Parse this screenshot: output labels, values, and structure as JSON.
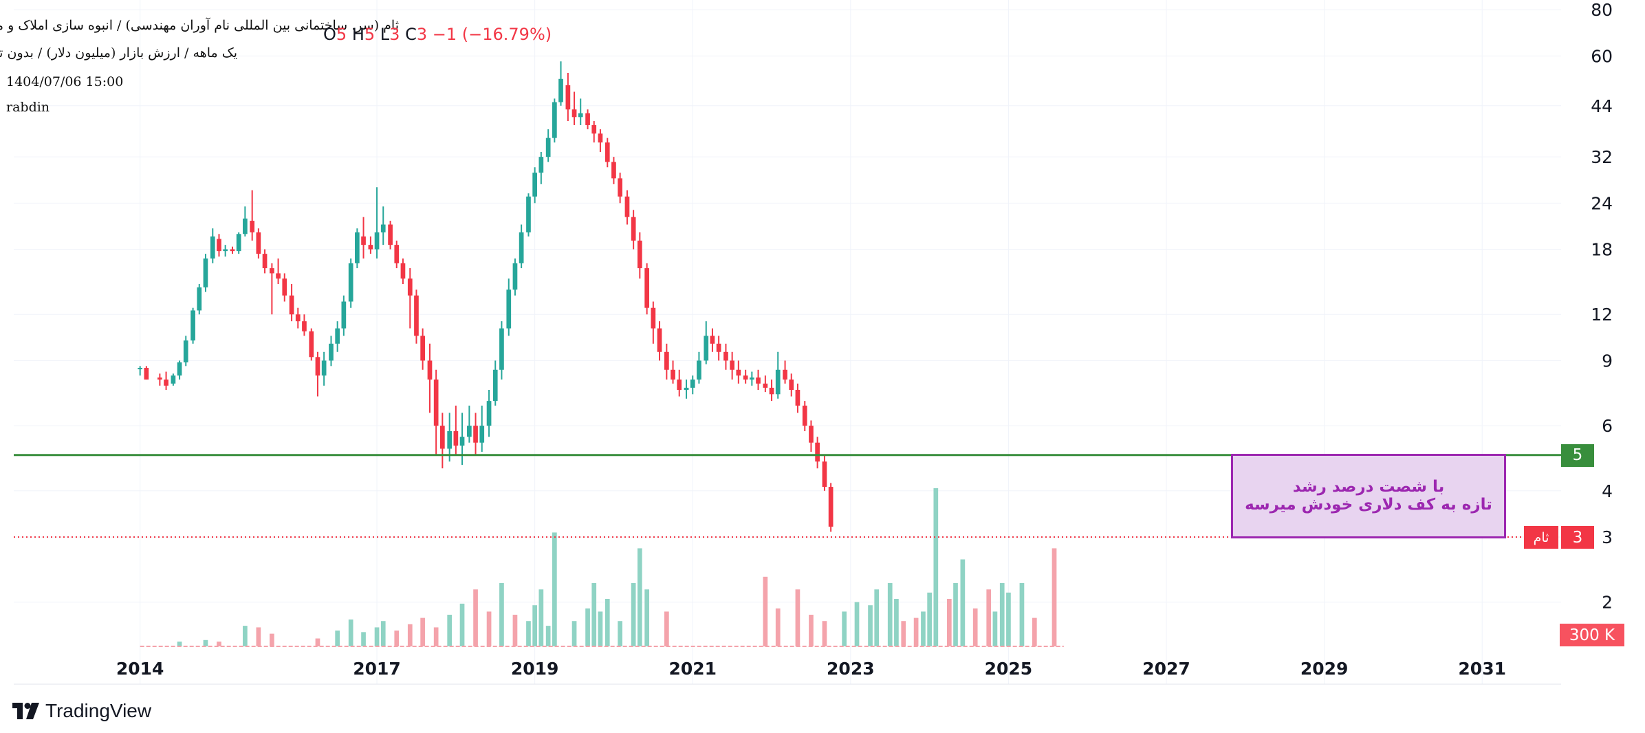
{
  "header": {
    "title_line1": "ثام (سر. ساختمانی بین المللی نام آوران مهندسی) / انبوه سازی املاک و مستغلات",
    "title_line2": "یک ماهه / ارزش بازار (میلیون دلار) / بدون تعدیل",
    "datetime": "1404/07/06 15:00",
    "user": "rabdin"
  },
  "legend": {
    "series_faded": "ثام (سر. ساختمانی بین المللی نام آوران مهندسی), 1M, Heikin Ashi",
    "o_label": "O",
    "o_value": "5",
    "h_label": "H",
    "h_value": "5",
    "l_label": "L",
    "l_value": "3",
    "c_label": "C",
    "c_value": "3",
    "change": "−1 (−16.79%)"
  },
  "annotation": {
    "line1": "با شصت درصد رشد",
    "line2": "تازه به کف دلاری خودش میرسه"
  },
  "price_tags": {
    "level": "5",
    "last": "3",
    "symbol": "ثام",
    "volume": "300 K"
  },
  "branding": {
    "name": "TradingView"
  },
  "colors": {
    "up": "#26a69a",
    "down": "#f23645",
    "vol_up": "#8fd3c4",
    "vol_down": "#f4a3ab",
    "level_line": "#388e3c",
    "last_line": "#f23645",
    "annotation": "#9c27b0"
  },
  "chart_data": {
    "type": "candlestick",
    "chart_style": "Heikin Ashi",
    "interval": "1M",
    "y_scale": "log",
    "ylim": [
      1.2,
      85
    ],
    "y_ticks": [
      2,
      3,
      4,
      6,
      9,
      12,
      18,
      24,
      32,
      44,
      60,
      80
    ],
    "x_ticks": [
      2014,
      2017,
      2019,
      2021,
      2023,
      2025,
      2027,
      2029,
      2031
    ],
    "x_range": [
      2012.4,
      2032.0
    ],
    "horizontal_lines": [
      {
        "value": 5,
        "style": "solid"
      },
      {
        "value": 3,
        "style": "dotted"
      }
    ],
    "last_price": 3,
    "candles": [
      {
        "t": 2014.0,
        "o": 8.6,
        "h": 8.7,
        "l": 8.2,
        "c": 8.6
      },
      {
        "t": 2014.08,
        "o": 8.6,
        "h": 8.7,
        "l": 8.0,
        "c": 8.0
      },
      {
        "t": 2014.25,
        "o": 8.1,
        "h": 8.3,
        "l": 7.7,
        "c": 8.0
      },
      {
        "t": 2014.33,
        "o": 8.0,
        "h": 8.4,
        "l": 7.5,
        "c": 7.7
      },
      {
        "t": 2014.42,
        "o": 7.8,
        "h": 8.3,
        "l": 7.7,
        "c": 8.2
      },
      {
        "t": 2014.5,
        "o": 8.2,
        "h": 9.0,
        "l": 8.0,
        "c": 8.9
      },
      {
        "t": 2014.58,
        "o": 8.9,
        "h": 10.5,
        "l": 8.7,
        "c": 10.2
      },
      {
        "t": 2014.67,
        "o": 10.2,
        "h": 12.5,
        "l": 10.0,
        "c": 12.3
      },
      {
        "t": 2014.75,
        "o": 12.3,
        "h": 14.5,
        "l": 12.0,
        "c": 14.2
      },
      {
        "t": 2014.83,
        "o": 14.2,
        "h": 17.5,
        "l": 13.8,
        "c": 17.0
      },
      {
        "t": 2014.92,
        "o": 17.0,
        "h": 20.5,
        "l": 16.5,
        "c": 19.5
      },
      {
        "t": 2015.0,
        "o": 19.2,
        "h": 19.8,
        "l": 17.2,
        "c": 17.8
      },
      {
        "t": 2015.08,
        "o": 17.8,
        "h": 18.5,
        "l": 17.2,
        "c": 18.0
      },
      {
        "t": 2015.17,
        "o": 18.0,
        "h": 18.3,
        "l": 17.5,
        "c": 17.8
      },
      {
        "t": 2015.25,
        "o": 17.8,
        "h": 20.0,
        "l": 17.5,
        "c": 19.8
      },
      {
        "t": 2015.33,
        "o": 19.8,
        "h": 23.5,
        "l": 19.5,
        "c": 21.8
      },
      {
        "t": 2015.42,
        "o": 21.5,
        "h": 26.0,
        "l": 19.0,
        "c": 20.0
      },
      {
        "t": 2015.5,
        "o": 20.0,
        "h": 20.5,
        "l": 17.0,
        "c": 17.5
      },
      {
        "t": 2015.58,
        "o": 17.5,
        "h": 18.0,
        "l": 15.5,
        "c": 16.0
      },
      {
        "t": 2015.67,
        "o": 16.0,
        "h": 16.5,
        "l": 12.0,
        "c": 15.5
      },
      {
        "t": 2015.75,
        "o": 15.5,
        "h": 17.0,
        "l": 14.5,
        "c": 15.0
      },
      {
        "t": 2015.83,
        "o": 15.0,
        "h": 15.5,
        "l": 13.0,
        "c": 13.5
      },
      {
        "t": 2015.92,
        "o": 13.5,
        "h": 14.5,
        "l": 11.5,
        "c": 12.0
      },
      {
        "t": 2016.0,
        "o": 12.0,
        "h": 12.5,
        "l": 11.0,
        "c": 11.5
      },
      {
        "t": 2016.08,
        "o": 11.5,
        "h": 12.0,
        "l": 10.5,
        "c": 10.8
      },
      {
        "t": 2016.17,
        "o": 10.8,
        "h": 11.0,
        "l": 9.0,
        "c": 9.2
      },
      {
        "t": 2016.25,
        "o": 9.2,
        "h": 9.5,
        "l": 7.2,
        "c": 8.2
      },
      {
        "t": 2016.33,
        "o": 8.2,
        "h": 9.5,
        "l": 7.7,
        "c": 9.0
      },
      {
        "t": 2016.42,
        "o": 9.0,
        "h": 10.5,
        "l": 8.7,
        "c": 10.0
      },
      {
        "t": 2016.5,
        "o": 10.0,
        "h": 11.5,
        "l": 9.5,
        "c": 11.0
      },
      {
        "t": 2016.58,
        "o": 11.0,
        "h": 13.5,
        "l": 10.5,
        "c": 13.0
      },
      {
        "t": 2016.67,
        "o": 13.0,
        "h": 17.0,
        "l": 12.5,
        "c": 16.5
      },
      {
        "t": 2016.75,
        "o": 16.5,
        "h": 20.5,
        "l": 16.0,
        "c": 20.0
      },
      {
        "t": 2016.83,
        "o": 19.5,
        "h": 22.0,
        "l": 17.0,
        "c": 18.5
      },
      {
        "t": 2016.92,
        "o": 18.5,
        "h": 19.5,
        "l": 17.5,
        "c": 18.0
      },
      {
        "t": 2017.0,
        "o": 18.0,
        "h": 26.5,
        "l": 17.0,
        "c": 20.0
      },
      {
        "t": 2017.08,
        "o": 20.0,
        "h": 23.5,
        "l": 18.5,
        "c": 21.0
      },
      {
        "t": 2017.17,
        "o": 21.0,
        "h": 21.5,
        "l": 18.0,
        "c": 18.5
      },
      {
        "t": 2017.25,
        "o": 18.5,
        "h": 19.0,
        "l": 16.0,
        "c": 16.5
      },
      {
        "t": 2017.33,
        "o": 16.5,
        "h": 17.0,
        "l": 14.5,
        "c": 15.0
      },
      {
        "t": 2017.42,
        "o": 15.0,
        "h": 16.0,
        "l": 11.0,
        "c": 13.5
      },
      {
        "t": 2017.5,
        "o": 13.5,
        "h": 14.0,
        "l": 10.0,
        "c": 10.5
      },
      {
        "t": 2017.58,
        "o": 10.5,
        "h": 11.0,
        "l": 8.5,
        "c": 9.0
      },
      {
        "t": 2017.67,
        "o": 9.0,
        "h": 10.0,
        "l": 6.5,
        "c": 8.0
      },
      {
        "t": 2017.75,
        "o": 8.0,
        "h": 8.5,
        "l": 5.0,
        "c": 6.0
      },
      {
        "t": 2017.83,
        "o": 6.0,
        "h": 6.5,
        "l": 4.6,
        "c": 5.2
      },
      {
        "t": 2017.92,
        "o": 5.2,
        "h": 6.5,
        "l": 4.8,
        "c": 5.8
      },
      {
        "t": 2018.0,
        "o": 5.8,
        "h": 6.8,
        "l": 5.0,
        "c": 5.3
      },
      {
        "t": 2018.08,
        "o": 5.3,
        "h": 6.5,
        "l": 4.7,
        "c": 5.6
      },
      {
        "t": 2018.17,
        "o": 5.6,
        "h": 6.8,
        "l": 5.4,
        "c": 6.0
      },
      {
        "t": 2018.25,
        "o": 6.0,
        "h": 6.5,
        "l": 5.0,
        "c": 5.4
      },
      {
        "t": 2018.33,
        "o": 5.4,
        "h": 6.8,
        "l": 5.1,
        "c": 6.0
      },
      {
        "t": 2018.42,
        "o": 6.0,
        "h": 7.5,
        "l": 5.6,
        "c": 7.0
      },
      {
        "t": 2018.5,
        "o": 7.0,
        "h": 9.0,
        "l": 6.8,
        "c": 8.5
      },
      {
        "t": 2018.58,
        "o": 8.5,
        "h": 11.5,
        "l": 8.0,
        "c": 11.0
      },
      {
        "t": 2018.67,
        "o": 11.0,
        "h": 15.0,
        "l": 10.5,
        "c": 14.0
      },
      {
        "t": 2018.75,
        "o": 14.0,
        "h": 17.0,
        "l": 13.5,
        "c": 16.5
      },
      {
        "t": 2018.83,
        "o": 16.5,
        "h": 21.0,
        "l": 16.0,
        "c": 20.0
      },
      {
        "t": 2018.92,
        "o": 20.0,
        "h": 25.5,
        "l": 19.5,
        "c": 25.0
      },
      {
        "t": 2019.0,
        "o": 25.0,
        "h": 30.0,
        "l": 24.0,
        "c": 29.0
      },
      {
        "t": 2019.08,
        "o": 29.0,
        "h": 33.0,
        "l": 27.0,
        "c": 32.0
      },
      {
        "t": 2019.17,
        "o": 32.0,
        "h": 38.0,
        "l": 31.0,
        "c": 36.0
      },
      {
        "t": 2019.25,
        "o": 36.0,
        "h": 46.0,
        "l": 35.0,
        "c": 45.0
      },
      {
        "t": 2019.33,
        "o": 45.0,
        "h": 58.0,
        "l": 44.0,
        "c": 52.0
      },
      {
        "t": 2019.42,
        "o": 50.0,
        "h": 54.0,
        "l": 40.0,
        "c": 43.0
      },
      {
        "t": 2019.5,
        "o": 43.0,
        "h": 48.0,
        "l": 39.0,
        "c": 41.0
      },
      {
        "t": 2019.58,
        "o": 41.0,
        "h": 46.0,
        "l": 39.0,
        "c": 42.0
      },
      {
        "t": 2019.67,
        "o": 42.0,
        "h": 43.0,
        "l": 38.0,
        "c": 39.0
      },
      {
        "t": 2019.75,
        "o": 39.0,
        "h": 40.0,
        "l": 35.0,
        "c": 37.0
      },
      {
        "t": 2019.83,
        "o": 37.0,
        "h": 38.0,
        "l": 33.0,
        "c": 35.0
      },
      {
        "t": 2019.92,
        "o": 35.0,
        "h": 36.0,
        "l": 30.0,
        "c": 31.0
      },
      {
        "t": 2020.0,
        "o": 31.0,
        "h": 32.0,
        "l": 27.0,
        "c": 28.0
      },
      {
        "t": 2020.08,
        "o": 28.0,
        "h": 29.0,
        "l": 24.0,
        "c": 25.0
      },
      {
        "t": 2020.17,
        "o": 25.0,
        "h": 26.0,
        "l": 21.0,
        "c": 22.0
      },
      {
        "t": 2020.25,
        "o": 22.0,
        "h": 23.0,
        "l": 18.0,
        "c": 19.0
      },
      {
        "t": 2020.33,
        "o": 19.0,
        "h": 20.0,
        "l": 15.0,
        "c": 16.0
      },
      {
        "t": 2020.42,
        "o": 16.0,
        "h": 16.5,
        "l": 12.0,
        "c": 12.5
      },
      {
        "t": 2020.5,
        "o": 12.5,
        "h": 13.0,
        "l": 10.0,
        "c": 11.0
      },
      {
        "t": 2020.58,
        "o": 11.0,
        "h": 11.5,
        "l": 9.0,
        "c": 9.5
      },
      {
        "t": 2020.67,
        "o": 9.5,
        "h": 10.0,
        "l": 8.0,
        "c": 8.5
      },
      {
        "t": 2020.75,
        "o": 8.5,
        "h": 9.0,
        "l": 7.8,
        "c": 8.0
      },
      {
        "t": 2020.83,
        "o": 8.0,
        "h": 8.5,
        "l": 7.2,
        "c": 7.5
      },
      {
        "t": 2020.92,
        "o": 7.5,
        "h": 8.0,
        "l": 7.1,
        "c": 7.6
      },
      {
        "t": 2021.0,
        "o": 7.6,
        "h": 8.2,
        "l": 7.3,
        "c": 8.0
      },
      {
        "t": 2021.08,
        "o": 8.0,
        "h": 9.5,
        "l": 7.8,
        "c": 9.0
      },
      {
        "t": 2021.17,
        "o": 9.0,
        "h": 11.5,
        "l": 8.8,
        "c": 10.5
      },
      {
        "t": 2021.25,
        "o": 10.5,
        "h": 11.0,
        "l": 9.5,
        "c": 10.0
      },
      {
        "t": 2021.33,
        "o": 10.0,
        "h": 10.5,
        "l": 9.0,
        "c": 9.5
      },
      {
        "t": 2021.42,
        "o": 9.5,
        "h": 10.0,
        "l": 8.5,
        "c": 9.0
      },
      {
        "t": 2021.5,
        "o": 9.0,
        "h": 9.5,
        "l": 8.0,
        "c": 8.5
      },
      {
        "t": 2021.58,
        "o": 8.5,
        "h": 9.0,
        "l": 7.8,
        "c": 8.2
      },
      {
        "t": 2021.67,
        "o": 8.2,
        "h": 8.5,
        "l": 7.8,
        "c": 8.0
      },
      {
        "t": 2021.75,
        "o": 8.0,
        "h": 8.4,
        "l": 7.7,
        "c": 8.1
      },
      {
        "t": 2021.83,
        "o": 8.1,
        "h": 8.5,
        "l": 7.5,
        "c": 7.8
      },
      {
        "t": 2021.92,
        "o": 7.8,
        "h": 8.2,
        "l": 7.4,
        "c": 7.6
      },
      {
        "t": 2022.0,
        "o": 7.6,
        "h": 8.0,
        "l": 7.0,
        "c": 7.3
      },
      {
        "t": 2022.08,
        "o": 7.3,
        "h": 9.5,
        "l": 7.1,
        "c": 8.5
      },
      {
        "t": 2022.17,
        "o": 8.5,
        "h": 9.0,
        "l": 7.8,
        "c": 8.0
      },
      {
        "t": 2022.25,
        "o": 8.0,
        "h": 8.3,
        "l": 7.2,
        "c": 7.5
      },
      {
        "t": 2022.33,
        "o": 7.5,
        "h": 7.8,
        "l": 6.5,
        "c": 6.8
      },
      {
        "t": 2022.42,
        "o": 6.8,
        "h": 7.0,
        "l": 5.8,
        "c": 6.0
      },
      {
        "t": 2022.5,
        "o": 6.0,
        "h": 6.2,
        "l": 5.1,
        "c": 5.4
      },
      {
        "t": 2022.58,
        "o": 5.4,
        "h": 5.6,
        "l": 4.6,
        "c": 4.8
      },
      {
        "t": 2022.67,
        "o": 4.8,
        "h": 5.0,
        "l": 4.0,
        "c": 4.1
      },
      {
        "t": 2022.75,
        "o": 4.1,
        "h": 4.2,
        "l": 3.1,
        "c": 3.2
      }
    ],
    "volume": [
      {
        "t": 2014.5,
        "v": 0.03,
        "up": true
      },
      {
        "t": 2014.83,
        "v": 0.04,
        "up": true
      },
      {
        "t": 2015.0,
        "v": 0.03,
        "up": false
      },
      {
        "t": 2015.33,
        "v": 0.13,
        "up": true
      },
      {
        "t": 2015.5,
        "v": 0.12,
        "up": false
      },
      {
        "t": 2015.67,
        "v": 0.08,
        "up": false
      },
      {
        "t": 2016.25,
        "v": 0.05,
        "up": false
      },
      {
        "t": 2016.5,
        "v": 0.1,
        "up": true
      },
      {
        "t": 2016.67,
        "v": 0.17,
        "up": true
      },
      {
        "t": 2016.83,
        "v": 0.09,
        "up": true
      },
      {
        "t": 2017.0,
        "v": 0.12,
        "up": true
      },
      {
        "t": 2017.08,
        "v": 0.16,
        "up": true
      },
      {
        "t": 2017.25,
        "v": 0.1,
        "up": false
      },
      {
        "t": 2017.42,
        "v": 0.14,
        "up": false
      },
      {
        "t": 2017.58,
        "v": 0.18,
        "up": false
      },
      {
        "t": 2017.75,
        "v": 0.12,
        "up": false
      },
      {
        "t": 2017.92,
        "v": 0.2,
        "up": true
      },
      {
        "t": 2018.08,
        "v": 0.27,
        "up": true
      },
      {
        "t": 2018.25,
        "v": 0.36,
        "up": false
      },
      {
        "t": 2018.42,
        "v": 0.22,
        "up": false
      },
      {
        "t": 2018.58,
        "v": 0.4,
        "up": true
      },
      {
        "t": 2018.75,
        "v": 0.2,
        "up": false
      },
      {
        "t": 2018.92,
        "v": 0.16,
        "up": true
      },
      {
        "t": 2019.0,
        "v": 0.26,
        "up": true
      },
      {
        "t": 2019.08,
        "v": 0.36,
        "up": true
      },
      {
        "t": 2019.17,
        "v": 0.13,
        "up": true
      },
      {
        "t": 2019.25,
        "v": 0.72,
        "up": true
      },
      {
        "t": 2019.5,
        "v": 0.16,
        "up": true
      },
      {
        "t": 2019.67,
        "v": 0.24,
        "up": true
      },
      {
        "t": 2019.75,
        "v": 0.4,
        "up": true
      },
      {
        "t": 2019.83,
        "v": 0.22,
        "up": true
      },
      {
        "t": 2019.92,
        "v": 0.3,
        "up": true
      },
      {
        "t": 2020.08,
        "v": 0.16,
        "up": true
      },
      {
        "t": 2020.25,
        "v": 0.4,
        "up": true
      },
      {
        "t": 2020.33,
        "v": 0.62,
        "up": true
      },
      {
        "t": 2020.42,
        "v": 0.36,
        "up": true
      },
      {
        "t": 2020.67,
        "v": 0.22,
        "up": false
      },
      {
        "t": 2021.92,
        "v": 0.44,
        "up": false
      },
      {
        "t": 2022.08,
        "v": 0.24,
        "up": false
      },
      {
        "t": 2022.33,
        "v": 0.36,
        "up": false
      },
      {
        "t": 2022.5,
        "v": 0.2,
        "up": false
      },
      {
        "t": 2022.67,
        "v": 0.16,
        "up": false
      },
      {
        "t": 2022.92,
        "v": 0.22,
        "up": true
      },
      {
        "t": 2023.08,
        "v": 0.28,
        "up": true
      },
      {
        "t": 2023.25,
        "v": 0.26,
        "up": true
      },
      {
        "t": 2023.33,
        "v": 0.36,
        "up": true
      },
      {
        "t": 2023.5,
        "v": 0.4,
        "up": true
      },
      {
        "t": 2023.58,
        "v": 0.3,
        "up": true
      },
      {
        "t": 2023.67,
        "v": 0.16,
        "up": false
      },
      {
        "t": 2023.83,
        "v": 0.18,
        "up": false
      },
      {
        "t": 2023.92,
        "v": 0.22,
        "up": true
      },
      {
        "t": 2024.0,
        "v": 0.34,
        "up": true
      },
      {
        "t": 2024.08,
        "v": 1.0,
        "up": true
      },
      {
        "t": 2024.25,
        "v": 0.3,
        "up": false
      },
      {
        "t": 2024.33,
        "v": 0.4,
        "up": true
      },
      {
        "t": 2024.42,
        "v": 0.55,
        "up": true
      },
      {
        "t": 2024.58,
        "v": 0.24,
        "up": false
      },
      {
        "t": 2024.75,
        "v": 0.36,
        "up": false
      },
      {
        "t": 2024.83,
        "v": 0.22,
        "up": true
      },
      {
        "t": 2024.92,
        "v": 0.4,
        "up": true
      },
      {
        "t": 2025.0,
        "v": 0.34,
        "up": true
      },
      {
        "t": 2025.17,
        "v": 0.4,
        "up": true
      },
      {
        "t": 2025.33,
        "v": 0.18,
        "up": false
      },
      {
        "t": 2025.58,
        "v": 0.62,
        "up": false
      }
    ]
  }
}
